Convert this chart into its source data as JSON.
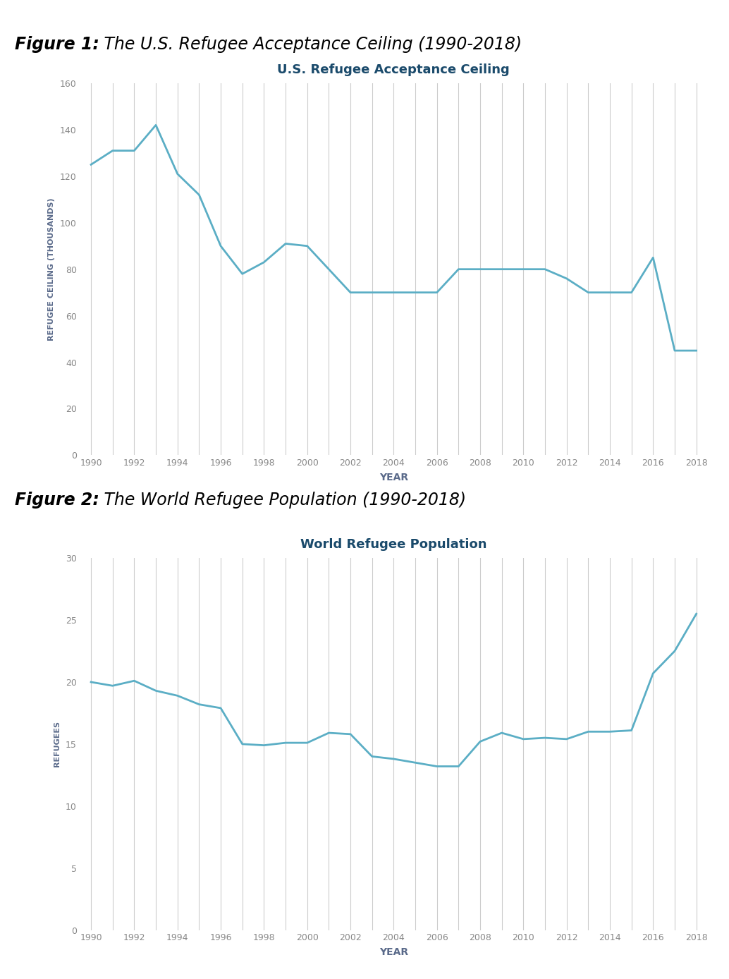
{
  "fig1_title": "U.S. Refugee Acceptance Ceiling",
  "fig1_years": [
    1990,
    1991,
    1992,
    1993,
    1994,
    1995,
    1996,
    1997,
    1998,
    1999,
    2000,
    2001,
    2002,
    2003,
    2004,
    2005,
    2006,
    2007,
    2008,
    2009,
    2010,
    2011,
    2012,
    2013,
    2014,
    2015,
    2016,
    2017,
    2018
  ],
  "fig1_values": [
    125,
    131,
    131,
    142,
    121,
    112,
    90,
    78,
    83,
    91,
    90,
    80,
    70,
    70,
    70,
    70,
    70,
    80,
    80,
    80,
    80,
    80,
    76,
    70,
    70,
    70,
    85,
    45,
    45
  ],
  "fig1_ylabel": "REFUGEE CEILING (THOUSANDS)",
  "fig1_xlabel": "YEAR",
  "fig1_ylim": [
    0,
    160
  ],
  "fig1_yticks": [
    0,
    20,
    40,
    60,
    80,
    100,
    120,
    140,
    160
  ],
  "fig1_xticks": [
    1990,
    1992,
    1994,
    1996,
    1998,
    2000,
    2002,
    2004,
    2006,
    2008,
    2010,
    2012,
    2014,
    2016,
    2018
  ],
  "fig1_caption_bold": "Figure 1:",
  "fig1_caption_italic": " The U.S. Refugee Acceptance Ceiling (1990-2018)",
  "fig2_title": "World Refugee Population",
  "fig2_years": [
    1990,
    1991,
    1992,
    1993,
    1994,
    1995,
    1996,
    1997,
    1998,
    1999,
    2000,
    2001,
    2002,
    2003,
    2004,
    2005,
    2006,
    2007,
    2008,
    2009,
    2010,
    2011,
    2012,
    2013,
    2014,
    2015,
    2016,
    2017,
    2018
  ],
  "fig2_values": [
    20.0,
    19.7,
    20.1,
    19.3,
    18.9,
    18.2,
    17.9,
    15.0,
    14.9,
    15.1,
    15.1,
    15.9,
    15.8,
    14.0,
    13.8,
    13.5,
    13.2,
    13.2,
    15.2,
    15.9,
    15.4,
    15.5,
    15.4,
    16.0,
    16.0,
    16.1,
    20.7,
    22.5,
    25.5
  ],
  "fig2_ylabel": "REFUGEES",
  "fig2_xlabel": "YEAR",
  "fig2_ylim": [
    0,
    30
  ],
  "fig2_yticks": [
    0,
    5,
    10,
    15,
    20,
    25,
    30
  ],
  "fig2_xticks": [
    1990,
    1992,
    1994,
    1996,
    1998,
    2000,
    2002,
    2004,
    2006,
    2008,
    2010,
    2012,
    2014,
    2016,
    2018
  ],
  "fig2_caption_bold": "Figure 2:",
  "fig2_caption_italic": " The World Refugee Population (1990-2018)",
  "line_color": "#5BAEC5",
  "grid_color": "#cccccc",
  "title_color": "#1a4a6b",
  "axis_label_color": "#5a6a8a",
  "tick_color": "#888888",
  "caption_color": "#000000",
  "background_color": "#ffffff"
}
